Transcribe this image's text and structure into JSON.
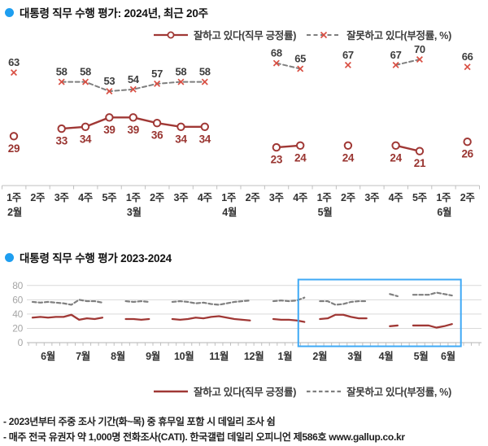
{
  "titles": {
    "top": "대통령 직무 수행 평가: 2024년, 최근 20주",
    "bottom": "대통령 직무 수행 평가 2023-2024"
  },
  "legend": {
    "positive": "잘하고 있다(직무 긍정률)",
    "negative": "잘못하고 있다(부정률, %)"
  },
  "footnotes": [
    "- 2023년부터 주중 조사 기간(화~목) 중 휴무일 포함 시 데일리 조사 쉼",
    "- 매주 전국 유권자 약 1,000명 전화조사(CATI). 한국갤럽 데일리 오피니언 제586호 www.gallup.co.kr"
  ],
  "colors": {
    "positive_line": "#a03835",
    "positive_label": "#993430",
    "negative_line": "#7f7f7f",
    "negative_marker": "#d94f43",
    "negative_label": "#3d3d3d",
    "bullet": "#1e9ef0",
    "highlight_box": "#3fa9f5",
    "axis": "#bfbfbf",
    "gridline": "#d9d9d9",
    "zero_axis": "#b3b3b3",
    "y_tick_label": "#a6a6a6",
    "x_tick_label": "#333333"
  },
  "chart_data": [
    {
      "type": "line",
      "title": "대통령 직무 수행 평가: 2024년, 최근 20주",
      "ylabel": "%",
      "grid": false,
      "legend_position": "top",
      "x_weeks": [
        "1주",
        "2주",
        "3주",
        "4주",
        "5주",
        "1주",
        "2주",
        "3주",
        "4주",
        "1주",
        "2주",
        "3주",
        "4주",
        "1주",
        "2주",
        "3주",
        "4주",
        "5주",
        "1주",
        "2주"
      ],
      "x_months": [
        {
          "label": "2월",
          "week_index": 0
        },
        {
          "label": "3월",
          "week_index": 5
        },
        {
          "label": "4월",
          "week_index": 9
        },
        {
          "label": "5월",
          "week_index": 13
        },
        {
          "label": "6월",
          "week_index": 18
        }
      ],
      "series": [
        {
          "name": "잘하고 있다(직무 긍정률)",
          "values": [
            29,
            null,
            33,
            34,
            39,
            39,
            36,
            34,
            34,
            null,
            null,
            23,
            24,
            null,
            24,
            null,
            24,
            21,
            null,
            26
          ]
        },
        {
          "name": "잘못하고 있다(부정률, %)",
          "values": [
            63,
            null,
            58,
            58,
            53,
            54,
            57,
            58,
            58,
            null,
            null,
            68,
            65,
            null,
            67,
            null,
            67,
            70,
            null,
            66
          ]
        }
      ]
    },
    {
      "type": "line",
      "title": "대통령 직무 수행 평가 2023-2024",
      "ylim": [
        0,
        80
      ],
      "yticks": [
        0,
        20,
        40,
        60,
        80
      ],
      "grid": true,
      "legend_position": "bottom",
      "months": [
        {
          "label": "6월",
          "weeks": 5
        },
        {
          "label": "7월",
          "weeks": 4
        },
        {
          "label": "8월",
          "weeks": 5
        },
        {
          "label": "9월",
          "weeks": 4
        },
        {
          "label": "10월",
          "weeks": 4
        },
        {
          "label": "11월",
          "weeks": 5
        },
        {
          "label": "12월",
          "weeks": 4
        },
        {
          "label": "1월",
          "weeks": 4
        },
        {
          "label": "2월",
          "weeks": 5
        },
        {
          "label": "3월",
          "weeks": 4
        },
        {
          "label": "4월",
          "weeks": 4
        },
        {
          "label": "5월",
          "weeks": 5
        },
        {
          "label": "6월",
          "weeks": 2
        }
      ],
      "highlight_box_weeks": {
        "from_index": 35,
        "to_index": 54
      },
      "series": [
        {
          "name": "잘하고 있다(직무 긍정률)",
          "values": [
            35,
            36,
            35,
            36,
            36,
            39,
            32,
            34,
            33,
            35,
            null,
            null,
            33,
            33,
            32,
            33,
            null,
            null,
            33,
            32,
            33,
            35,
            34,
            36,
            37,
            35,
            33,
            32,
            31,
            null,
            null,
            33,
            32,
            32,
            31,
            29,
            null,
            33,
            34,
            39,
            39,
            36,
            34,
            34,
            null,
            null,
            23,
            24,
            null,
            24,
            24,
            24,
            21,
            23,
            26
          ]
        },
        {
          "name": "잘못하고 있다(부정률, %)",
          "values": [
            57,
            56,
            57,
            56,
            55,
            53,
            60,
            58,
            58,
            56,
            null,
            null,
            58,
            57,
            58,
            57,
            null,
            null,
            57,
            58,
            57,
            55,
            56,
            54,
            53,
            55,
            57,
            58,
            59,
            null,
            null,
            58,
            59,
            58,
            59,
            63,
            null,
            58,
            58,
            53,
            54,
            57,
            58,
            58,
            null,
            null,
            68,
            65,
            null,
            67,
            67,
            67,
            70,
            68,
            66
          ]
        }
      ]
    }
  ]
}
